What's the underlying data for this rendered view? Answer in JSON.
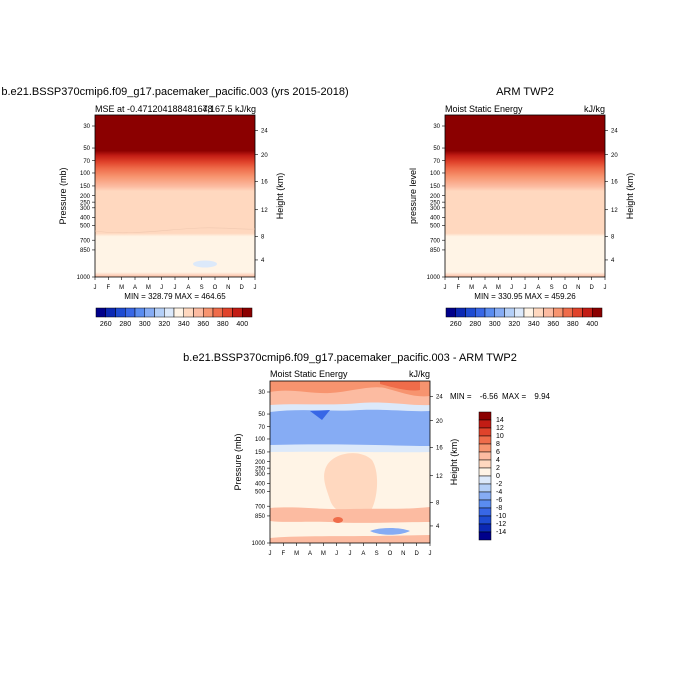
{
  "palette": [
    "#00008b",
    "#0b28b4",
    "#1e4bd2",
    "#3867e6",
    "#5a8cf0",
    "#86acf4",
    "#b4cff7",
    "#dce9fa",
    "#fff4e6",
    "#ffd8bf",
    "#fcbba1",
    "#f7946f",
    "#ef6c4a",
    "#e0432b",
    "#c21c14",
    "#8b0000"
  ],
  "chart_data": [
    {
      "type": "heatmap",
      "title": "b.e21.BSSP370cmip6.f09_g17.pacemaker_pacific.003 (yrs 2015-2018)",
      "left_label": "MSE at -0.471204188481678",
      "right_label": "4,167.5 kJ/kg",
      "ylabel": "Pressure (mb)",
      "ylabel_right": "Height (km)",
      "months": [
        "J",
        "F",
        "M",
        "A",
        "M",
        "J",
        "J",
        "A",
        "S",
        "O",
        "N",
        "D",
        "J"
      ],
      "pressure_ticks": [
        "30",
        "50",
        "70",
        "100",
        "150",
        "200",
        "250",
        "300",
        "400",
        "500",
        "700",
        "850",
        "1000"
      ],
      "height_ticks": [
        "24",
        "20",
        "16",
        "12",
        "8",
        "4"
      ],
      "stats": "MIN = 328.79 MAX = 464.65",
      "colorbar_labels": [
        "260",
        "280",
        "300",
        "320",
        "340",
        "360",
        "380",
        "400"
      ],
      "values_kJ_per_kg": {
        "min": 328.79,
        "max": 464.65
      }
    },
    {
      "type": "heatmap",
      "title": "ARM TWP2",
      "left_label": "Moist Static Energy",
      "right_label": "kJ/kg",
      "ylabel": "pressure level",
      "ylabel_right": "Height (km)",
      "months": [
        "J",
        "F",
        "M",
        "A",
        "M",
        "J",
        "J",
        "A",
        "S",
        "O",
        "N",
        "D",
        "J"
      ],
      "pressure_ticks": [
        "30",
        "50",
        "70",
        "100",
        "150",
        "200",
        "250",
        "300",
        "400",
        "500",
        "700",
        "850",
        "1000"
      ],
      "height_ticks": [
        "24",
        "20",
        "16",
        "12",
        "8",
        "4"
      ],
      "stats": "MIN = 330.95 MAX = 459.26",
      "colorbar_labels": [
        "260",
        "280",
        "300",
        "320",
        "340",
        "360",
        "380",
        "400"
      ],
      "values_kJ_per_kg": {
        "min": 330.95,
        "max": 459.26
      }
    },
    {
      "type": "heatmap",
      "title": "b.e21.BSSP370cmip6.f09_g17.pacemaker_pacific.003 - ARM TWP2",
      "left_label": "Moist Static Energy",
      "right_label": "kJ/kg",
      "ylabel": "Pressure (mb)",
      "ylabel_right": "Height (km)",
      "months": [
        "J",
        "F",
        "M",
        "A",
        "M",
        "J",
        "J",
        "A",
        "S",
        "O",
        "N",
        "D",
        "J"
      ],
      "pressure_ticks": [
        "30",
        "50",
        "70",
        "100",
        "150",
        "200",
        "250",
        "300",
        "400",
        "500",
        "700",
        "850",
        "1000"
      ],
      "height_ticks": [
        "24",
        "20",
        "16",
        "12",
        "8",
        "4"
      ],
      "stats_min_label": "MIN =",
      "stats_min": "-6.56",
      "stats_max_label": "MAX =",
      "stats_max": "9.94",
      "colorbar_labels": [
        "14",
        "12",
        "10",
        "8",
        "6",
        "4",
        "2",
        "0",
        "-2",
        "-4",
        "-6",
        "-8",
        "-10",
        "-12",
        "-14"
      ],
      "values_kJ_per_kg": {
        "min": -6.56,
        "max": 9.94
      }
    }
  ]
}
